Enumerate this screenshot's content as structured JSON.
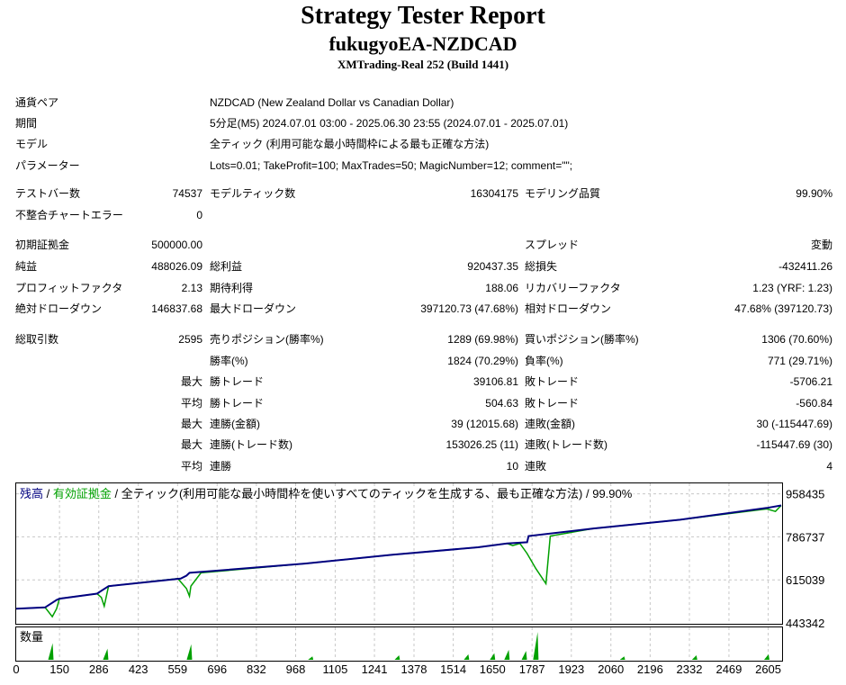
{
  "header": {
    "title": "Strategy Tester Report",
    "subtitle": "fukugyoEA-NZDCAD",
    "server": "XMTrading-Real 252 (Build 1441)"
  },
  "info": [
    {
      "label": "通貨ペア",
      "value": "NZDCAD (New Zealand Dollar vs Canadian Dollar)"
    },
    {
      "label": "期間",
      "value": "5分足(M5) 2024.07.01 03:00 - 2025.06.30 23:55 (2024.07.01 - 2025.07.01)"
    },
    {
      "label": "モデル",
      "value": "全ティック (利用可能な最小時間枠による最も正確な方法)"
    },
    {
      "label": "パラメーター",
      "value": "Lots=0.01; TakeProfit=100; MaxTrades=50; MagicNumber=12; comment=\"\";"
    }
  ],
  "stats": {
    "bars_label": "テストバー数",
    "bars": "74537",
    "ticks_label": "モデルティック数",
    "ticks": "16304175",
    "quality_label": "モデリング品質",
    "quality": "99.90%",
    "errors_label": "不整合チャートエラー",
    "errors": "0",
    "deposit_label": "初期証拠金",
    "deposit": "500000.00",
    "spread_label": "スプレッド",
    "spread": "変動",
    "net_label": "純益",
    "net": "488026.09",
    "gross_profit_label": "総利益",
    "gross_profit": "920437.35",
    "gross_loss_label": "総損失",
    "gross_loss": "-432411.26",
    "pf_label": "プロフィットファクタ",
    "pf": "2.13",
    "expected_label": "期待利得",
    "expected": "188.06",
    "recovery_label": "リカバリーファクタ",
    "recovery": "1.23 (YRF: 1.23)",
    "abs_dd_label": "絶対ドローダウン",
    "abs_dd": "146837.68",
    "max_dd_label": "最大ドローダウン",
    "max_dd": "397120.73 (47.68%)",
    "rel_dd_label": "相対ドローダウン",
    "rel_dd": "47.68% (397120.73)",
    "trades_label": "総取引数",
    "trades": "2595",
    "short_label": "売りポジション(勝率%)",
    "short": "1289 (69.98%)",
    "long_label": "買いポジション(勝率%)",
    "long": "1306 (70.60%)",
    "win_pct_label": "勝率(%)",
    "win_pct": "1824 (70.29%)",
    "loss_pct_label": "負率(%)",
    "loss_pct": "771 (29.71%)",
    "max_word": "最大",
    "avg_word": "平均",
    "largest_win_label": "勝トレード",
    "largest_win": "39106.81",
    "largest_loss_label": "敗トレード",
    "largest_loss": "-5706.21",
    "avg_win_label": "勝トレード",
    "avg_win": "504.63",
    "avg_loss_label": "敗トレード",
    "avg_loss": "-560.84",
    "max_cons_wins_label": "連勝(金額)",
    "max_cons_wins": "39 (12015.68)",
    "max_cons_losses_label": "連敗(金額)",
    "max_cons_losses": "30 (-115447.69)",
    "max_cons_profit_label": "連勝(トレード数)",
    "max_cons_profit": "153026.25 (11)",
    "max_cons_loss_label": "連敗(トレード数)",
    "max_cons_loss": "-115447.69 (30)",
    "avg_cons_wins_label": "連勝",
    "avg_cons_wins": "10",
    "avg_cons_losses_label": "連敗",
    "avg_cons_losses": "4"
  },
  "legend": {
    "balance": "残高",
    "sep1": " / ",
    "equity": "有効証拠金",
    "sep2": " / ",
    "rest": "全ティック(利用可能な最小時間枠を使いすべてのティックを生成する、最も正確な方法) / 99.90%"
  },
  "volume_label": "数量",
  "colors": {
    "balance": "#000080",
    "equity": "#00a000",
    "volume": "#00a000",
    "grid": "#c8c8c8"
  },
  "chart_data": {
    "type": "line",
    "xlabel": "",
    "ylabel": "",
    "xlim": [
      0,
      2650
    ],
    "ylim": [
      443342,
      1000000
    ],
    "x_ticks": [
      0,
      150,
      286,
      423,
      559,
      696,
      832,
      968,
      1105,
      1241,
      1378,
      1514,
      1650,
      1787,
      1923,
      2060,
      2196,
      2332,
      2469,
      2605
    ],
    "y_ticks": [
      443342,
      615039,
      786737,
      958435
    ],
    "grid": true,
    "series": [
      {
        "name": "残高",
        "x": [
          0,
          100,
          140,
          150,
          280,
          300,
          320,
          570,
          590,
          600,
          1000,
          1300,
          1600,
          1700,
          1770,
          1775,
          2000,
          2300,
          2600,
          2650
        ],
        "values": [
          500000,
          505000,
          535000,
          540000,
          560000,
          575000,
          590000,
          620000,
          632000,
          643000,
          680000,
          715000,
          745000,
          760000,
          765000,
          790000,
          820000,
          855000,
          902000,
          912000
        ]
      },
      {
        "name": "有効証拠金",
        "x": [
          0,
          100,
          125,
          140,
          150,
          280,
          295,
          305,
          320,
          560,
          590,
          600,
          605,
          640,
          1000,
          1300,
          1600,
          1700,
          1720,
          1745,
          1770,
          1800,
          1835,
          1850,
          2000,
          2300,
          2600,
          2630,
          2650
        ],
        "values": [
          500000,
          505000,
          468000,
          500000,
          540000,
          560000,
          545000,
          510000,
          590000,
          620000,
          580000,
          550000,
          590000,
          643000,
          680000,
          715000,
          745000,
          760000,
          752000,
          760000,
          720000,
          660000,
          600000,
          790000,
          820000,
          855000,
          898000,
          888000,
          912000
        ]
      }
    ],
    "volume": {
      "name": "数量",
      "x": [
        120,
        310,
        600,
        1020,
        1320,
        1560,
        1650,
        1700,
        1760,
        1800,
        2100,
        2350,
        2600
      ],
      "values": [
        30,
        20,
        28,
        6,
        8,
        10,
        12,
        18,
        16,
        50,
        6,
        8,
        10
      ]
    }
  }
}
